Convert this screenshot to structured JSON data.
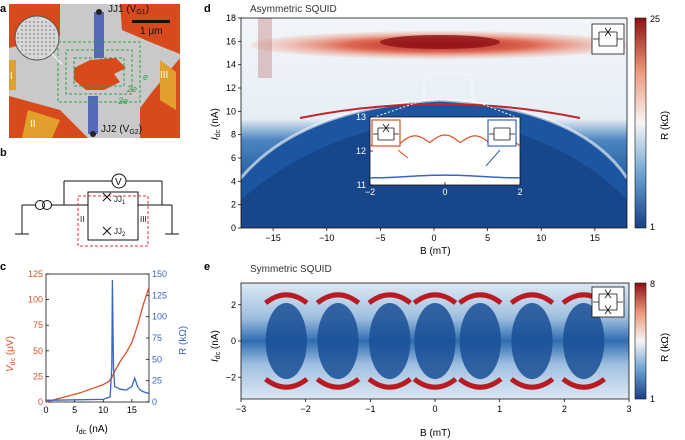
{
  "panels": {
    "a": {
      "label": "a",
      "jj1": "JJ1 (V",
      "jj1_sub": "G1",
      "jj2": "JJ2 (V",
      "jj2_sub": "G2",
      "scale": "1 μm",
      "roman_I": "I",
      "roman_II": "II",
      "roman_III": "III",
      "loop_e": "e",
      "loop_2e": "2e",
      "loop_3e": "3e"
    },
    "b": {
      "label": "b",
      "voltmeter": "V",
      "jj1": "JJ",
      "jj1_sub": "1",
      "jj2": "JJ",
      "jj2_sub": "2",
      "lead_II": "II",
      "lead_III": "III"
    },
    "c": {
      "label": "c",
      "xlabel": "I",
      "xlabel_sub": "dc",
      "xunit": " (nA)",
      "ylabel_left": "V",
      "ylabel_left_sub": "dc",
      "ylabel_left_unit": " (μV)",
      "ylabel_right": "R (kΩ)",
      "colors": {
        "vdc": "#d9502a",
        "r": "#3a64c0"
      }
    },
    "d": {
      "label": "d",
      "title": "Asymmetric SQUID",
      "xlabel": "B (mT)",
      "ylabel": "I",
      "ylabel_sub": "dc",
      "yunit": " (nA)",
      "colorbar_label": "R (kΩ)",
      "colorbar_max": "25",
      "colorbar_min": "1",
      "inset_colors": {
        "red": "#d9502a",
        "blue": "#3a64c0"
      }
    },
    "e": {
      "label": "e",
      "title": "Symmetric SQUID",
      "xlabel": "B (mT)",
      "ylabel": "I",
      "ylabel_sub": "dc",
      "yunit": " (nA)",
      "colorbar_label": "R (kΩ)",
      "colorbar_max": "8",
      "colorbar_min": "1"
    }
  },
  "chart_data": [
    {
      "panel": "c",
      "type": "line",
      "xlabel": "Idc (nA)",
      "ylabel": "Vdc (μV)",
      "ylabel_right": "R (kΩ)",
      "xlim": [
        0,
        18
      ],
      "ylim": [
        0,
        125
      ],
      "ylim_right": [
        0,
        150
      ],
      "xticks": [
        "0",
        "5",
        "10",
        "15"
      ],
      "yticks_left": [
        "0",
        "25",
        "50",
        "75",
        "100",
        "125"
      ],
      "yticks_right": [
        "0",
        "25",
        "50",
        "75",
        "100",
        "125",
        "150"
      ],
      "series": [
        {
          "name": "Vdc",
          "axis": "left",
          "x": [
            0,
            2,
            4,
            6,
            8,
            10,
            11,
            11.5,
            12,
            13,
            14,
            15,
            16,
            17,
            18
          ],
          "y": [
            0,
            3,
            6,
            9,
            13,
            17,
            20,
            24,
            30,
            40,
            48,
            58,
            75,
            95,
            112
          ]
        },
        {
          "name": "R",
          "axis": "right",
          "x": [
            0,
            10,
            11.2,
            11.5,
            11.6,
            11.8,
            12,
            13,
            14,
            15,
            15.5,
            16,
            16.5,
            17,
            18
          ],
          "y": [
            2,
            3,
            6,
            40,
            143,
            40,
            18,
            15,
            14,
            18,
            28,
            18,
            14,
            12,
            10
          ]
        }
      ]
    },
    {
      "panel": "d",
      "type": "heatmap",
      "title": "Asymmetric SQUID",
      "xlabel": "B (mT)",
      "ylabel": "Idc (nA)",
      "xlim": [
        -18,
        18
      ],
      "ylim": [
        0,
        18
      ],
      "xticks": [
        "−15",
        "−10",
        "−5",
        "0",
        "5",
        "10",
        "15"
      ],
      "yticks": [
        "0",
        "2",
        "4",
        "6",
        "8",
        "10",
        "12",
        "14",
        "16",
        "18"
      ],
      "colorbar_range": [
        1,
        25
      ],
      "inset": {
        "xlim": [
          -2,
          2
        ],
        "ylim": [
          11,
          13
        ],
        "xticks": [
          "−2",
          "0",
          "2"
        ],
        "yticks": [
          "11",
          "12",
          "13"
        ],
        "series": [
          {
            "name": "switching (red)",
            "mean": 12.35,
            "amplitude": 0.22,
            "period_mT": 0.82
          },
          {
            "name": "retrapping (blue)",
            "mean": 11.25,
            "amplitude": 0.04
          }
        ]
      }
    },
    {
      "panel": "e",
      "type": "heatmap",
      "title": "Symmetric SQUID",
      "xlabel": "B (mT)",
      "ylabel": "Idc (nA)",
      "xlim": [
        -3,
        3
      ],
      "ylim": [
        -3.2,
        3.2
      ],
      "xticks": [
        "−3",
        "−2",
        "−1",
        "0",
        "1",
        "2",
        "3"
      ],
      "yticks": [
        "−2",
        "0",
        "2"
      ],
      "colorbar_range": [
        1,
        8
      ],
      "lobe_centers_mT": [
        -2.3,
        -1.5,
        -0.7,
        0,
        0.7,
        1.5,
        2.3
      ],
      "critical_current_nA": 2.1
    }
  ]
}
